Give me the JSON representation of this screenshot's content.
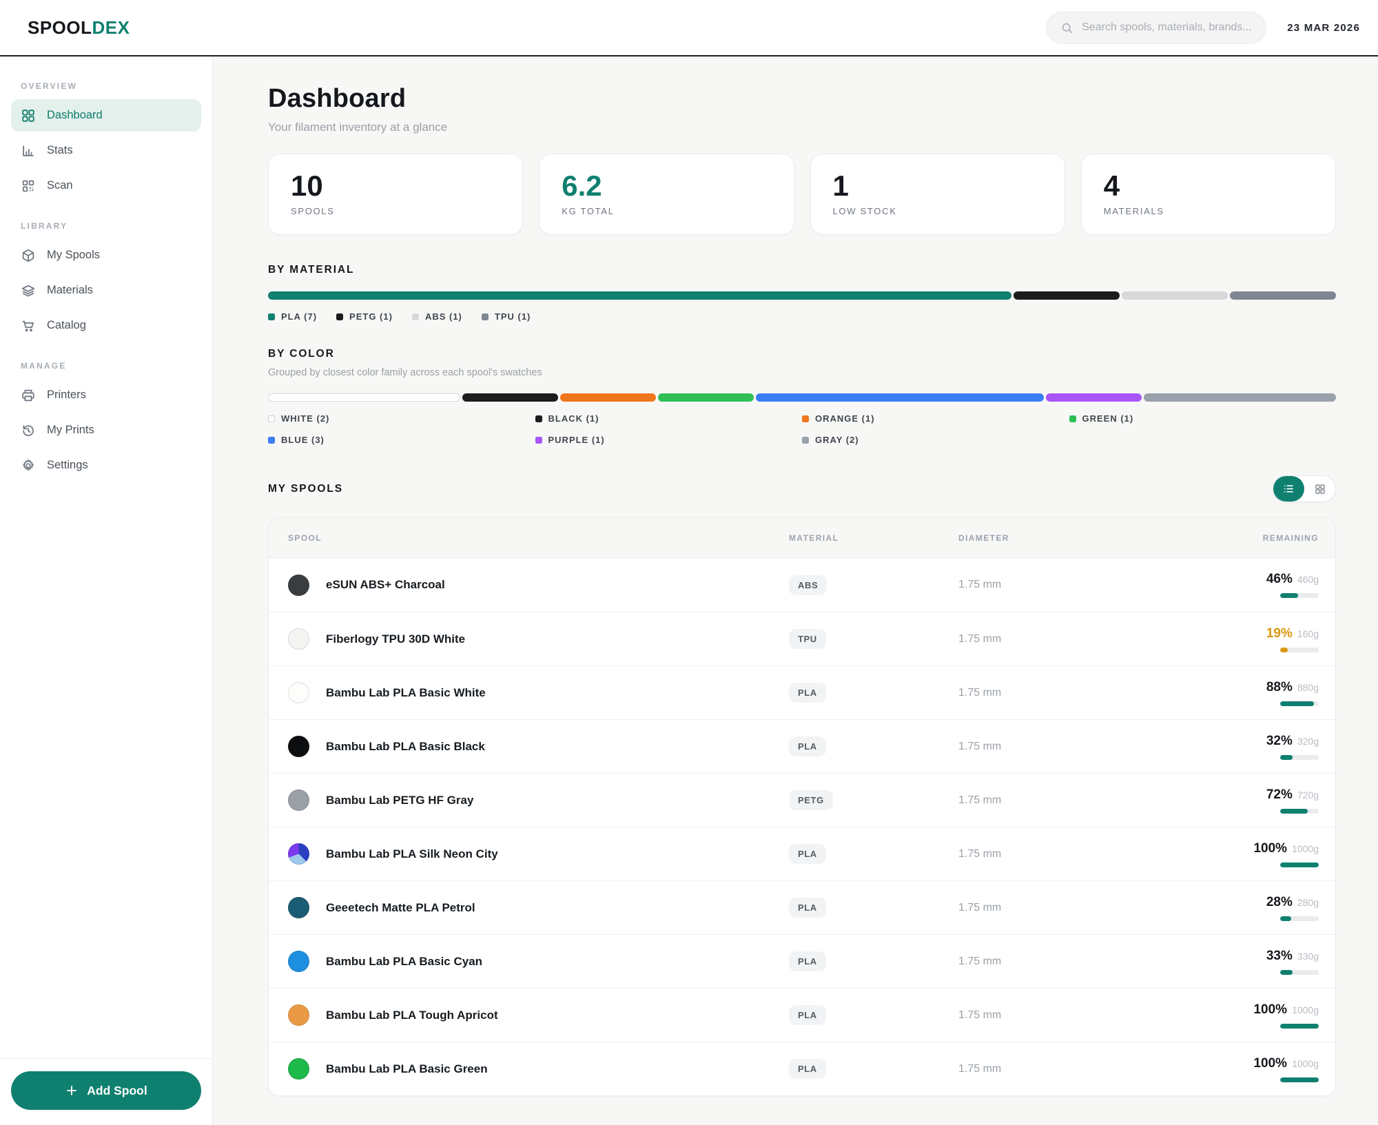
{
  "brand": {
    "logo_primary": "SPOOL",
    "logo_accent": "DEX"
  },
  "header": {
    "search_placeholder": "Search spools, materials, brands...",
    "date": "23 MAR 2026"
  },
  "sidebar": {
    "sections": [
      {
        "label": "OVERVIEW",
        "items": [
          {
            "label": "Dashboard",
            "icon": "grid-icon",
            "active": true
          },
          {
            "label": "Stats",
            "icon": "chart-icon",
            "active": false
          },
          {
            "label": "Scan",
            "icon": "qr-icon",
            "active": false
          }
        ]
      },
      {
        "label": "LIBRARY",
        "items": [
          {
            "label": "My Spools",
            "icon": "box-icon",
            "active": false
          },
          {
            "label": "Materials",
            "icon": "layers-icon",
            "active": false
          },
          {
            "label": "Catalog",
            "icon": "cart-icon",
            "active": false
          }
        ]
      },
      {
        "label": "MANAGE",
        "items": [
          {
            "label": "Printers",
            "icon": "printer-icon",
            "active": false
          },
          {
            "label": "My Prints",
            "icon": "history-icon",
            "active": false
          },
          {
            "label": "Settings",
            "icon": "gear-icon",
            "active": false
          }
        ]
      }
    ],
    "add_button_label": "Add Spool"
  },
  "page": {
    "title": "Dashboard",
    "subtitle": "Your filament inventory at a glance"
  },
  "stats": [
    {
      "value": "10",
      "label": "SPOOLS",
      "accent": false
    },
    {
      "value": "6.2",
      "label": "KG TOTAL",
      "accent": true
    },
    {
      "value": "1",
      "label": "LOW STOCK",
      "accent": false
    },
    {
      "value": "4",
      "label": "MATERIALS",
      "accent": false
    }
  ],
  "chart_data": [
    {
      "type": "bar",
      "title": "BY MATERIAL",
      "categories": [
        "PLA",
        "PETG",
        "ABS",
        "TPU"
      ],
      "values": [
        7,
        1,
        1,
        1
      ],
      "colors": [
        "#0f8070",
        "#1b1c1e",
        "#d6d8da",
        "#7e8692"
      ]
    },
    {
      "type": "bar",
      "title": "BY COLOR",
      "subtitle": "Grouped by closest color family across each spool's swatches",
      "categories": [
        "WHITE",
        "BLACK",
        "ORANGE",
        "GREEN",
        "BLUE",
        "PURPLE",
        "GRAY"
      ],
      "values": [
        2,
        1,
        1,
        1,
        3,
        1,
        2
      ],
      "colors": [
        "#ffffff",
        "#1b1c1e",
        "#f0761b",
        "#2fbf55",
        "#3b7ef5",
        "#a855f7",
        "#9aa1ab"
      ]
    }
  ],
  "by_material": {
    "title": "BY MATERIAL",
    "segments": [
      {
        "name": "PLA",
        "count": 7,
        "color": "#0f8070",
        "border": false
      },
      {
        "name": "PETG",
        "count": 1,
        "color": "#1b1c1e",
        "border": false
      },
      {
        "name": "ABS",
        "count": 1,
        "color": "#d6d8da",
        "border": false
      },
      {
        "name": "TPU",
        "count": 1,
        "color": "#7e8692",
        "border": false
      }
    ]
  },
  "by_color": {
    "title": "BY COLOR",
    "subtitle": "Grouped by closest color family across each spool's swatches",
    "segments": [
      {
        "name": "WHITE",
        "count": 2,
        "color": "#ffffff",
        "border": true
      },
      {
        "name": "BLACK",
        "count": 1,
        "color": "#1b1c1e",
        "border": false
      },
      {
        "name": "ORANGE",
        "count": 1,
        "color": "#f0761b",
        "border": false
      },
      {
        "name": "GREEN",
        "count": 1,
        "color": "#2fbf55",
        "border": false
      },
      {
        "name": "BLUE",
        "count": 3,
        "color": "#3b7ef5",
        "border": false
      },
      {
        "name": "PURPLE",
        "count": 1,
        "color": "#a855f7",
        "border": false
      },
      {
        "name": "GRAY",
        "count": 2,
        "color": "#9aa1ab",
        "border": false
      }
    ]
  },
  "spools": {
    "title": "MY SPOOLS",
    "columns": [
      "SPOOL",
      "MATERIAL",
      "DIAMETER",
      "REMAINING"
    ],
    "rows": [
      {
        "name": "eSUN ABS+ Charcoal",
        "swatch": {
          "type": "solid",
          "color": "#3a3d40"
        },
        "material": "ABS",
        "diameter": "1.75 mm",
        "percent": 46,
        "grams": "460g",
        "low": false
      },
      {
        "name": "Fiberlogy TPU 30D White",
        "swatch": {
          "type": "solid",
          "color": "#f4f4f2"
        },
        "material": "TPU",
        "diameter": "1.75 mm",
        "percent": 19,
        "grams": "160g",
        "low": true
      },
      {
        "name": "Bambu Lab PLA Basic White",
        "swatch": {
          "type": "solid",
          "color": "#fdfdfb"
        },
        "material": "PLA",
        "diameter": "1.75 mm",
        "percent": 88,
        "grams": "880g",
        "low": false
      },
      {
        "name": "Bambu Lab PLA Basic Black",
        "swatch": {
          "type": "solid",
          "color": "#0d0e10"
        },
        "material": "PLA",
        "diameter": "1.75 mm",
        "percent": 32,
        "grams": "320g",
        "low": false
      },
      {
        "name": "Bambu Lab PETG HF Gray",
        "swatch": {
          "type": "solid",
          "color": "#9aa0a6"
        },
        "material": "PETG",
        "diameter": "1.75 mm",
        "percent": 72,
        "grams": "720g",
        "low": false
      },
      {
        "name": "Bambu Lab PLA Silk Neon City",
        "swatch": {
          "type": "multi",
          "colors": [
            "#7c3aed",
            "#2b3fc2",
            "#9cc8ea"
          ]
        },
        "material": "PLA",
        "diameter": "1.75 mm",
        "percent": 100,
        "grams": "1000g",
        "low": false
      },
      {
        "name": "Geeetech Matte PLA Petrol",
        "swatch": {
          "type": "solid",
          "color": "#1b5d74"
        },
        "material": "PLA",
        "diameter": "1.75 mm",
        "percent": 28,
        "grams": "280g",
        "low": false
      },
      {
        "name": "Bambu Lab PLA Basic Cyan",
        "swatch": {
          "type": "solid",
          "color": "#1e8fe0"
        },
        "material": "PLA",
        "diameter": "1.75 mm",
        "percent": 33,
        "grams": "330g",
        "low": false
      },
      {
        "name": "Bambu Lab PLA Tough Apricot",
        "swatch": {
          "type": "solid",
          "color": "#ea9a47"
        },
        "material": "PLA",
        "diameter": "1.75 mm",
        "percent": 100,
        "grams": "1000g",
        "low": false
      },
      {
        "name": "Bambu Lab PLA Basic Green",
        "swatch": {
          "type": "solid",
          "color": "#1eb94b"
        },
        "material": "PLA",
        "diameter": "1.75 mm",
        "percent": 100,
        "grams": "1000g",
        "low": false
      }
    ]
  },
  "colors": {
    "brand_teal": "#0f8070",
    "low_stock_amber": "#d9970f"
  }
}
